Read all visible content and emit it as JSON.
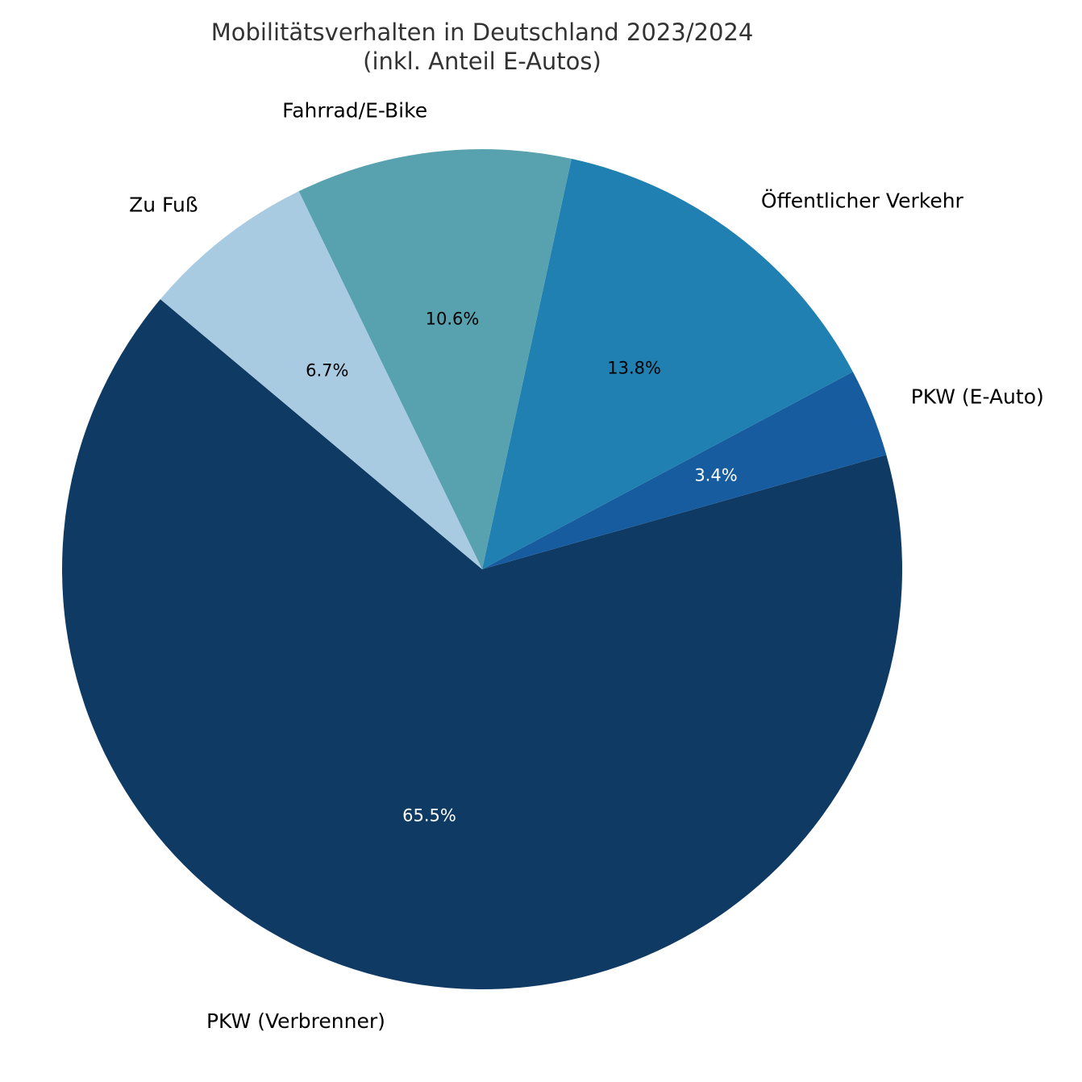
{
  "chart_data": {
    "type": "pie",
    "title_lines": [
      "Mobilitätsverhalten in Deutschland 2023/2024",
      "(inkl. Anteil E-Autos)"
    ],
    "start_angle_deg": 140,
    "direction": "counterclockwise",
    "slices": [
      {
        "label": "PKW (Verbrenner)",
        "value": 65.5,
        "pct_label": "65.5%",
        "color": "#0e3a64",
        "pct_color": "#ffffff"
      },
      {
        "label": "PKW (E-Auto)",
        "value": 3.4,
        "pct_label": "3.4%",
        "color": "#165c9f",
        "pct_color": "#ffffff"
      },
      {
        "label": "Öffentlicher Verkehr",
        "value": 13.8,
        "pct_label": "13.8%",
        "color": "#2080b1",
        "pct_color": "#000000"
      },
      {
        "label": "Fahrrad/E-Bike",
        "value": 10.6,
        "pct_label": "10.6%",
        "color": "#58a2b0",
        "pct_color": "#000000"
      },
      {
        "label": "Zu Fuß",
        "value": 6.7,
        "pct_label": "6.7%",
        "color": "#a9cbe1",
        "pct_color": "#000000"
      }
    ]
  }
}
